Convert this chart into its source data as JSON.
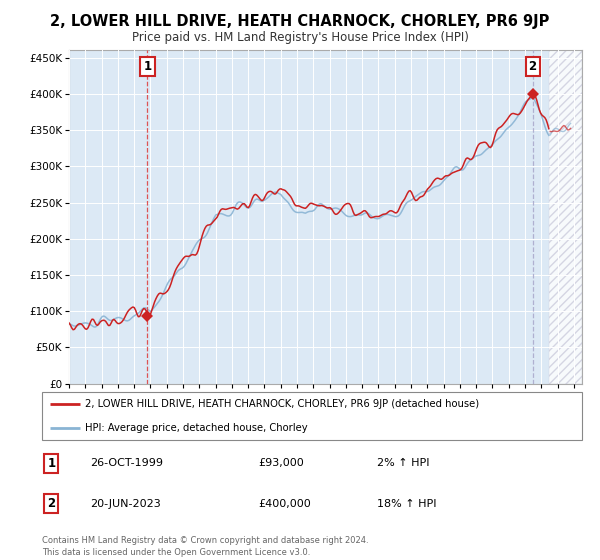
{
  "title": "2, LOWER HILL DRIVE, HEATH CHARNOCK, CHORLEY, PR6 9JP",
  "subtitle": "Price paid vs. HM Land Registry's House Price Index (HPI)",
  "xlim_start": 1995.0,
  "xlim_end": 2026.5,
  "ylim": [
    0,
    460000
  ],
  "yticks": [
    0,
    50000,
    100000,
    150000,
    200000,
    250000,
    300000,
    350000,
    400000,
    450000
  ],
  "ytick_labels": [
    "£0",
    "£50K",
    "£100K",
    "£150K",
    "£200K",
    "£250K",
    "£300K",
    "£350K",
    "£400K",
    "£450K"
  ],
  "xticks": [
    1995,
    1996,
    1997,
    1998,
    1999,
    2000,
    2001,
    2002,
    2003,
    2004,
    2005,
    2006,
    2007,
    2008,
    2009,
    2010,
    2011,
    2012,
    2013,
    2014,
    2015,
    2016,
    2017,
    2018,
    2019,
    2020,
    2021,
    2022,
    2023,
    2024,
    2025,
    2026
  ],
  "hpi_line_color": "#8ab4d4",
  "price_line_color": "#cc2222",
  "background_color": "#dce9f5",
  "plot_bg": "#dce9f5",
  "grid_color": "#ffffff",
  "sale1_x": 1999.82,
  "sale1_y": 93000,
  "sale1_label": "1",
  "sale1_date": "26-OCT-1999",
  "sale1_price": "£93,000",
  "sale1_hpi": "2% ↑ HPI",
  "sale2_x": 2023.47,
  "sale2_y": 400000,
  "sale2_label": "2",
  "sale2_date": "20-JUN-2023",
  "sale2_price": "£400,000",
  "sale2_hpi": "18% ↑ HPI",
  "legend_line1": "2, LOWER HILL DRIVE, HEATH CHARNOCK, CHORLEY, PR6 9JP (detached house)",
  "legend_line2": "HPI: Average price, detached house, Chorley",
  "footer": "Contains HM Land Registry data © Crown copyright and database right 2024.\nThis data is licensed under the Open Government Licence v3.0.",
  "future_cutoff": 2024.5,
  "sale_box_color": "#cc2222",
  "vline1_color": "#dd4444",
  "vline2_color": "#aaaacc"
}
